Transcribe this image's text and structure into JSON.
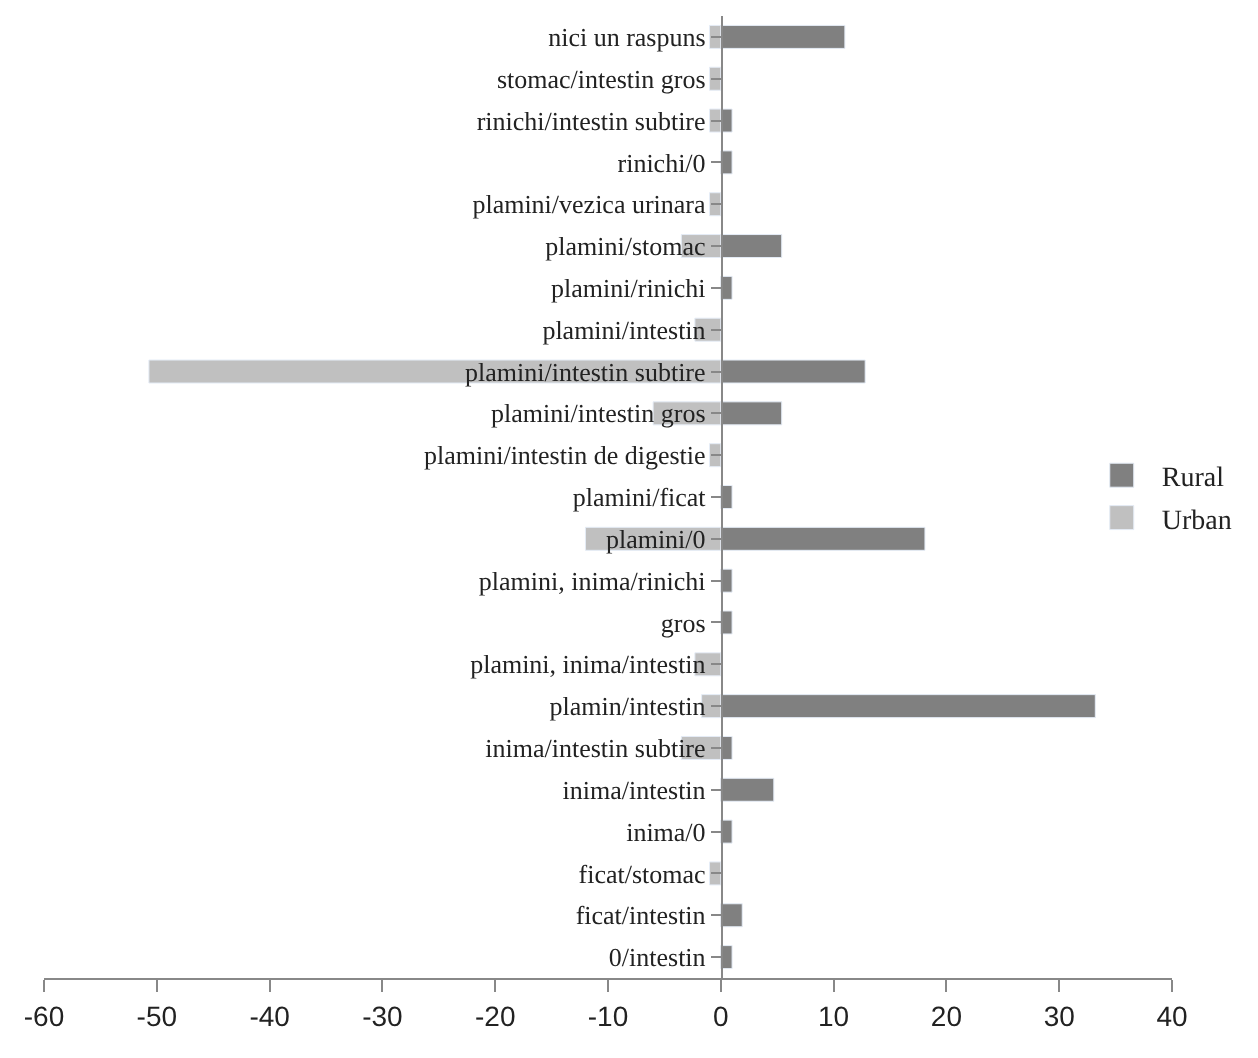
{
  "chart_data": {
    "type": "bar",
    "orientation": "horizontal",
    "categories": [
      "nici un raspuns",
      "stomac/intestin gros",
      "rinichi/intestin subtire",
      "rinichi/0",
      "plamini/vezica urinara",
      "plamini/stomac",
      "plamini/rinichi",
      "plamini/intestin",
      "plamini/intestin subtire",
      "plamini/intestin gros",
      "plamini/intestin de digestie",
      "plamini/ficat",
      "plamini/0",
      "plamini, inima/rinichi",
      "gros",
      "plamini, inima/intestin",
      "plamin/intestin",
      "inima/intestin subtire",
      "inima/intestin",
      "inima/0",
      "ficat/stomac",
      "ficat/intestin",
      "0/intestin"
    ],
    "series": [
      {
        "name": "Rural",
        "color": "#808080",
        "values": [
          11,
          null,
          1,
          1,
          null,
          5.4,
          1,
          null,
          12.8,
          5.4,
          null,
          1,
          18.1,
          1,
          1,
          null,
          33.2,
          1,
          4.7,
          1,
          null,
          1.9,
          1
        ]
      },
      {
        "name": "Urban",
        "color": "#c0c0c0",
        "values": [
          -1,
          -1,
          -1,
          null,
          -1,
          -3.5,
          null,
          -2.3,
          -50.7,
          -6,
          -1,
          null,
          -12,
          null,
          null,
          -2.3,
          -1.7,
          -3.5,
          null,
          null,
          -1,
          null,
          null
        ]
      }
    ],
    "xlim": [
      -60,
      40
    ],
    "xticks": [
      -60,
      -50,
      -40,
      -30,
      -20,
      -10,
      0,
      10,
      20,
      30,
      40
    ],
    "legend": "right"
  }
}
